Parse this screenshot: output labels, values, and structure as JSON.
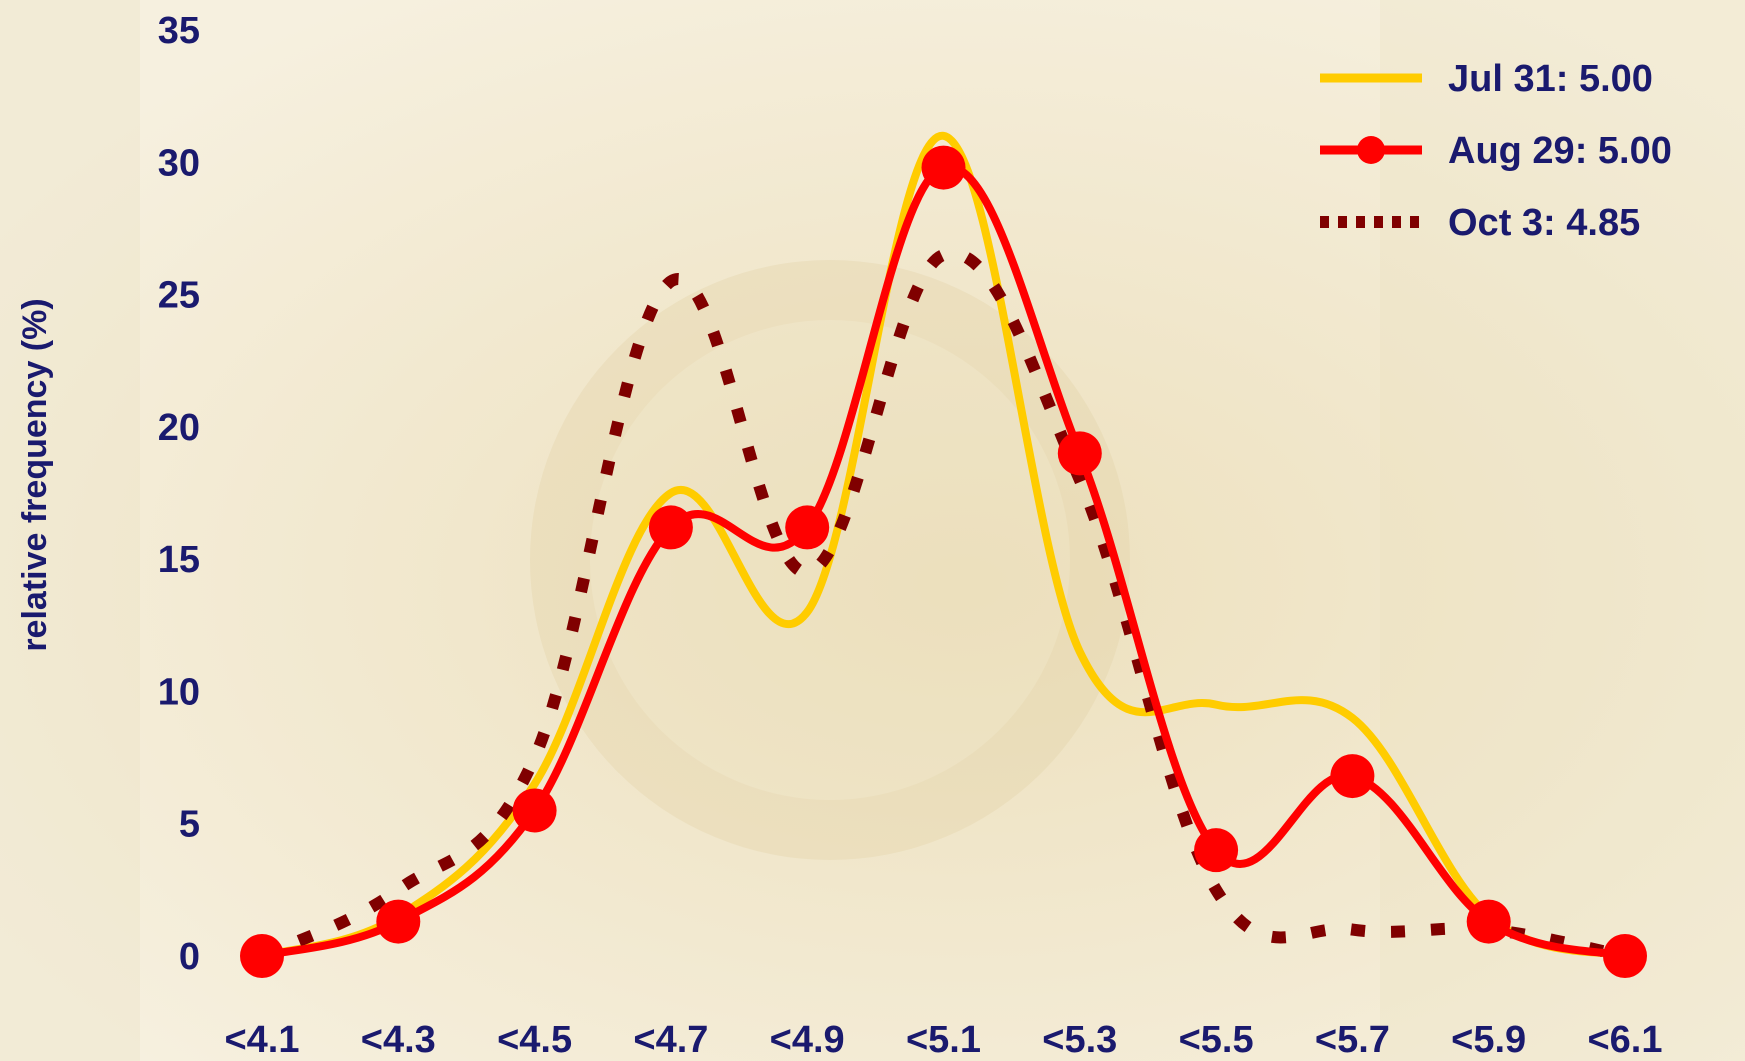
{
  "chart_data": {
    "type": "line",
    "ylabel": "relative frequency (%)",
    "ylim": [
      0,
      35
    ],
    "yticks": [
      "0",
      "5",
      "10",
      "15",
      "20",
      "25",
      "30",
      "35"
    ],
    "categories": [
      "<4.1",
      "<4.3",
      "<4.5",
      "<4.7",
      "<4.9",
      "<5.1",
      "<5.3",
      "<5.5",
      "<5.7",
      "<5.9",
      "<6.1"
    ],
    "legend_position": "top-right",
    "grid": false,
    "series": [
      {
        "name": "Jul 31: 5.00",
        "color": "#ffcc00",
        "style": "solid",
        "markers": false,
        "values": [
          0,
          1.5,
          6.5,
          17.5,
          13,
          31,
          11.5,
          9.5,
          9,
          1.5,
          0
        ]
      },
      {
        "name": "Aug 29: 5.00",
        "color": "#ff0000",
        "style": "solid-markers",
        "markers": true,
        "values": [
          0,
          1.3,
          5.5,
          16.2,
          16.2,
          29.8,
          19,
          4,
          6.8,
          1.3,
          0
        ]
      },
      {
        "name": "Oct 3: 4.85",
        "color": "#800000",
        "style": "dotted",
        "markers": false,
        "values": [
          0,
          2.5,
          7.5,
          25.5,
          14.5,
          26.5,
          18,
          2.5,
          1,
          1,
          0
        ]
      }
    ]
  }
}
